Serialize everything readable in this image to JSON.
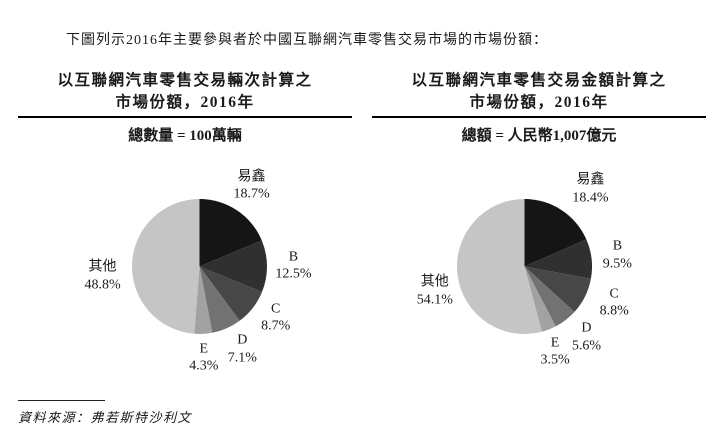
{
  "page": {
    "title": "下圖列示2016年主要參與者於中國互聯網汽車零售交易市場的市場份額：",
    "source": "資料來源：弗若斯特沙利文"
  },
  "chart_data": [
    {
      "type": "pie",
      "title": [
        "以互聯網汽車零售交易輛次計算之",
        "市場份額，2016年"
      ],
      "total_label": "總數量 = 100萬輛",
      "labels": [
        "易鑫",
        "B",
        "C",
        "D",
        "E",
        "其他"
      ],
      "values": [
        18.7,
        12.5,
        8.7,
        7.1,
        4.3,
        48.8
      ],
      "value_labels": [
        "18.7%",
        "12.5%",
        "8.7%",
        "7.1%",
        "4.3%",
        "48.8%"
      ],
      "colors": [
        "#151515",
        "#303030",
        "#474747",
        "#727272",
        "#a2a2a2",
        "#c5c5c5"
      ],
      "start_angle": 0,
      "clockwise": true
    },
    {
      "type": "pie",
      "title": [
        "以互聯網汽車零售交易金額計算之",
        "市場份額，2016年"
      ],
      "total_label": "總額 = 人民幣1,007億元",
      "labels": [
        "易鑫",
        "B",
        "C",
        "D",
        "E",
        "其他"
      ],
      "values": [
        18.4,
        9.5,
        8.8,
        5.6,
        3.5,
        54.1
      ],
      "value_labels": [
        "18.4%",
        "9.5%",
        "8.8%",
        "5.6%",
        "3.5%",
        "54.1%"
      ],
      "colors": [
        "#151515",
        "#303030",
        "#474747",
        "#727272",
        "#a2a2a2",
        "#c5c5c5"
      ],
      "start_angle": 0,
      "clockwise": true
    }
  ]
}
